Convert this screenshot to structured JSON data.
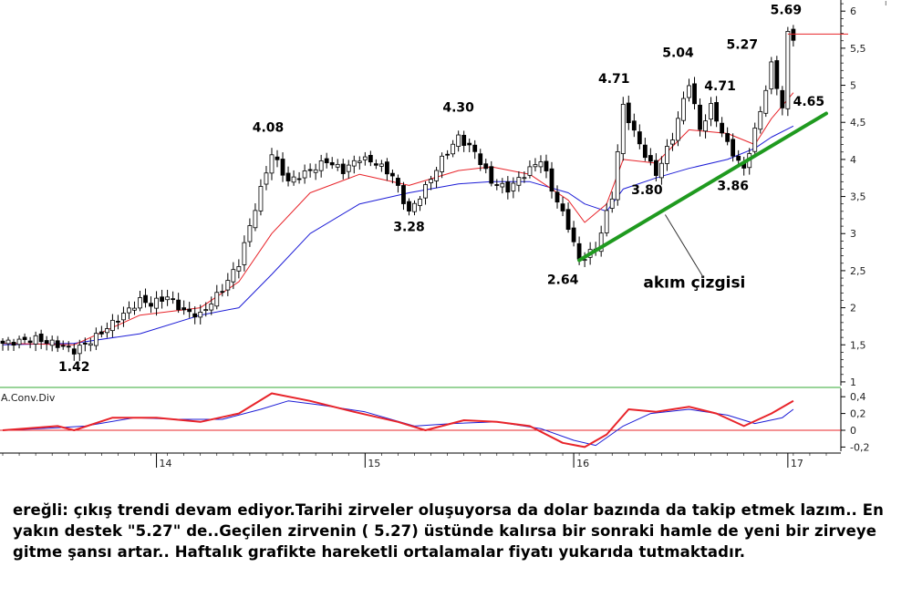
{
  "comment": "ereğli: çıkış trendi devam ediyor.Tarihi zirveler oluşuyorsa da dolar bazında da takip etmek lazım.. En yakın destek \"5.27\" de..Geçilen zirvenin ( 5.27) üstünde kalırsa bir sonraki hamle de yeni bir zirveye gitme şansı artar.. Haftalık grafikte hareketli ortalamalar fiyatı yukarıda tutmaktadır.",
  "colors": {
    "candle": "#000000",
    "ma_fast": "#e8242a",
    "ma_slow": "#1c1cd6",
    "trendline": "#1f9a1f",
    "resistance": "#e8242a",
    "panel_divider": "#33aa33",
    "macd_line": "#e8242a",
    "macd_signal": "#1c1cd6",
    "zero_line": "#e8242a"
  },
  "chart_data": [
    {
      "type": "candlestick",
      "ylim": [
        0.95,
        6.15
      ],
      "y_ticks": [
        "1",
        "1,5",
        "2",
        "2,5",
        "3",
        "3,5",
        "4",
        "4,5",
        "5",
        "5,5",
        "6"
      ],
      "x_ticks": [
        "14",
        "15",
        "16",
        "17"
      ],
      "price_path": [
        [
          0,
          1.52
        ],
        [
          6,
          1.58
        ],
        [
          10,
          1.5
        ],
        [
          13,
          1.42
        ],
        [
          16,
          1.55
        ],
        [
          21,
          1.85
        ],
        [
          25,
          2.1
        ],
        [
          27,
          2.05
        ],
        [
          30,
          2.15
        ],
        [
          33,
          1.95
        ],
        [
          36,
          1.9
        ],
        [
          40,
          2.25
        ],
        [
          43,
          2.6
        ],
        [
          46,
          3.35
        ],
        [
          49,
          4.08
        ],
        [
          52,
          3.7
        ],
        [
          56,
          3.85
        ],
        [
          59,
          3.98
        ],
        [
          62,
          3.85
        ],
        [
          65,
          4.02
        ],
        [
          68,
          3.95
        ],
        [
          71,
          3.78
        ],
        [
          74,
          3.28
        ],
        [
          77,
          3.62
        ],
        [
          80,
          4.0
        ],
        [
          83,
          4.3
        ],
        [
          86,
          4.1
        ],
        [
          89,
          3.7
        ],
        [
          92,
          3.6
        ],
        [
          95,
          3.8
        ],
        [
          98,
          4.0
        ],
        [
          100,
          3.6
        ],
        [
          103,
          3.1
        ],
        [
          105,
          2.64
        ],
        [
          108,
          2.8
        ],
        [
          111,
          3.5
        ],
        [
          113,
          4.71
        ],
        [
          116,
          4.2
        ],
        [
          119,
          3.8
        ],
        [
          122,
          4.3
        ],
        [
          125,
          5.04
        ],
        [
          127,
          4.4
        ],
        [
          129,
          4.71
        ],
        [
          132,
          4.2
        ],
        [
          135,
          3.86
        ],
        [
          138,
          4.65
        ],
        [
          140,
          5.27
        ],
        [
          142,
          4.7
        ],
        [
          143,
          5.69
        ],
        [
          144,
          5.65
        ]
      ],
      "ma_fast_path": [
        [
          0,
          1.52
        ],
        [
          13,
          1.5
        ],
        [
          25,
          1.9
        ],
        [
          36,
          2.0
        ],
        [
          43,
          2.35
        ],
        [
          49,
          3.0
        ],
        [
          56,
          3.55
        ],
        [
          65,
          3.8
        ],
        [
          74,
          3.65
        ],
        [
          83,
          3.85
        ],
        [
          89,
          3.9
        ],
        [
          96,
          3.8
        ],
        [
          103,
          3.45
        ],
        [
          106,
          3.15
        ],
        [
          110,
          3.4
        ],
        [
          113,
          4.0
        ],
        [
          119,
          3.95
        ],
        [
          125,
          4.4
        ],
        [
          132,
          4.35
        ],
        [
          137,
          4.2
        ],
        [
          140,
          4.55
        ],
        [
          144,
          4.9
        ]
      ],
      "ma_slow_path": [
        [
          0,
          1.5
        ],
        [
          13,
          1.52
        ],
        [
          25,
          1.65
        ],
        [
          36,
          1.9
        ],
        [
          43,
          2.0
        ],
        [
          49,
          2.45
        ],
        [
          56,
          3.0
        ],
        [
          65,
          3.4
        ],
        [
          74,
          3.55
        ],
        [
          83,
          3.67
        ],
        [
          89,
          3.7
        ],
        [
          96,
          3.7
        ],
        [
          103,
          3.55
        ],
        [
          106,
          3.4
        ],
        [
          110,
          3.3
        ],
        [
          113,
          3.6
        ],
        [
          119,
          3.75
        ],
        [
          125,
          3.88
        ],
        [
          132,
          4.0
        ],
        [
          137,
          4.15
        ],
        [
          140,
          4.3
        ],
        [
          144,
          4.45
        ]
      ],
      "trendline": [
        [
          105,
          2.64
        ],
        [
          150,
          4.62
        ]
      ],
      "resistance_level": 5.69,
      "annotations": [
        {
          "text": "1.42",
          "x": 13,
          "y": 1.42
        },
        {
          "text": "4.08",
          "x": 49,
          "y": 4.08
        },
        {
          "text": "3.28",
          "x": 74,
          "y": 3.28
        },
        {
          "text": "4.30",
          "x": 83,
          "y": 4.3
        },
        {
          "text": "2.64",
          "x": 105,
          "y": 2.64
        },
        {
          "text": "4.71",
          "x": 113,
          "y": 4.71
        },
        {
          "text": "3.80",
          "x": 119,
          "y": 3.8
        },
        {
          "text": "5.04",
          "x": 125,
          "y": 5.04
        },
        {
          "text": "4.71",
          "x": 129,
          "y": 4.71
        },
        {
          "text": "3.86",
          "x": 135,
          "y": 3.86
        },
        {
          "text": "5.27",
          "x": 140,
          "y": 5.27
        },
        {
          "text": "4.65",
          "x": 144,
          "y": 4.65
        },
        {
          "text": "5.69",
          "x": 143,
          "y": 5.69
        },
        {
          "text": "akım çizgisi",
          "x": 120,
          "y": 2.0
        }
      ]
    },
    {
      "type": "line",
      "title": "A.Conv.Div",
      "ylim": [
        -0.25,
        0.5
      ],
      "y_ticks": [
        "0,4",
        "0,2",
        "0",
        "-0,2"
      ],
      "series": [
        {
          "values": [
            [
              0,
              0.0
            ],
            [
              10,
              0.05
            ],
            [
              13,
              0.0
            ],
            [
              20,
              0.15
            ],
            [
              28,
              0.15
            ],
            [
              36,
              0.1
            ],
            [
              43,
              0.2
            ],
            [
              49,
              0.44
            ],
            [
              56,
              0.35
            ],
            [
              64,
              0.22
            ],
            [
              72,
              0.1
            ],
            [
              77,
              0.0
            ],
            [
              84,
              0.12
            ],
            [
              90,
              0.1
            ],
            [
              96,
              0.05
            ],
            [
              102,
              -0.15
            ],
            [
              106,
              -0.2
            ],
            [
              110,
              -0.05
            ],
            [
              114,
              0.25
            ],
            [
              119,
              0.22
            ],
            [
              125,
              0.28
            ],
            [
              130,
              0.2
            ],
            [
              135,
              0.05
            ],
            [
              140,
              0.2
            ],
            [
              144,
              0.35
            ]
          ]
        },
        {
          "values": [
            [
              0,
              0.0
            ],
            [
              10,
              0.03
            ],
            [
              15,
              0.05
            ],
            [
              24,
              0.15
            ],
            [
              32,
              0.13
            ],
            [
              40,
              0.13
            ],
            [
              47,
              0.25
            ],
            [
              52,
              0.35
            ],
            [
              58,
              0.3
            ],
            [
              66,
              0.22
            ],
            [
              75,
              0.05
            ],
            [
              82,
              0.08
            ],
            [
              90,
              0.1
            ],
            [
              98,
              0.02
            ],
            [
              104,
              -0.12
            ],
            [
              108,
              -0.18
            ],
            [
              113,
              0.05
            ],
            [
              118,
              0.2
            ],
            [
              125,
              0.25
            ],
            [
              132,
              0.18
            ],
            [
              137,
              0.08
            ],
            [
              142,
              0.15
            ],
            [
              144,
              0.25
            ]
          ]
        }
      ]
    }
  ]
}
